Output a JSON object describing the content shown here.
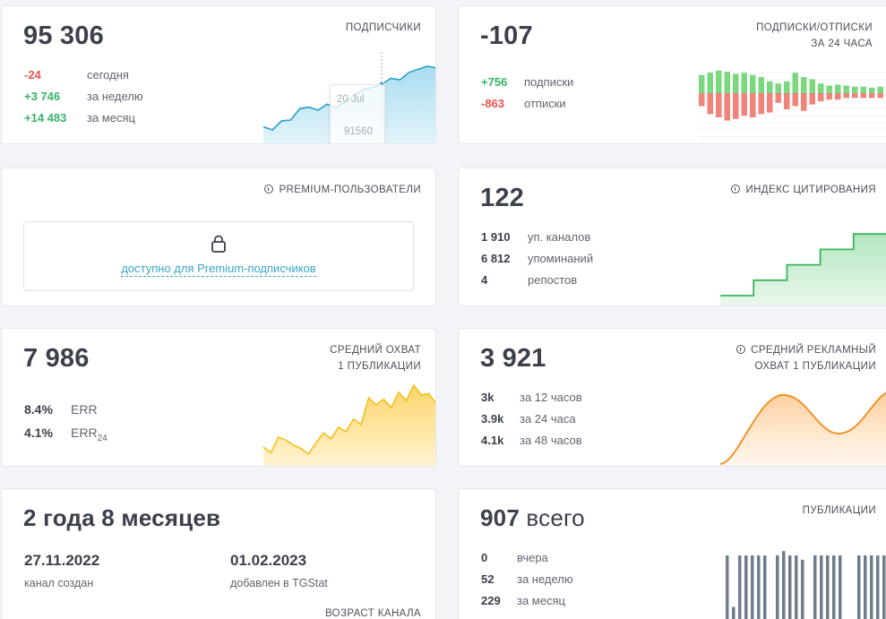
{
  "subscribers": {
    "value": "95 306",
    "title": "ПОДПИСЧИКИ",
    "rows": [
      {
        "num": "-24",
        "label": "сегодня"
      },
      {
        "num": "+3 746",
        "label": "за неделю"
      },
      {
        "num": "+14 483",
        "label": "за месяц"
      }
    ],
    "tooltip": {
      "date": "20 Jul",
      "value": "91560"
    },
    "chart_data": {
      "type": "area",
      "values": [
        91000,
        90960,
        91080,
        91090,
        91240,
        91260,
        91220,
        91300,
        91250,
        91330,
        91420,
        91500,
        91520,
        91560,
        91640,
        91620,
        91720,
        91760,
        91800,
        91780
      ]
    }
  },
  "subs_unsubs": {
    "value": "-107",
    "title_line1": "ПОДПИСКИ/ОТПИСКИ",
    "title_line2": "ЗА 24 ЧАСА",
    "rows": [
      {
        "num": "+756",
        "label": "подписки"
      },
      {
        "num": "-863",
        "label": "отписки"
      }
    ],
    "colors": {
      "up": "#7bd87f",
      "down": "#f0837a"
    },
    "chart_data": {
      "type": "bar",
      "up": [
        34,
        38,
        42,
        40,
        36,
        38,
        34,
        30,
        22,
        18,
        22,
        38,
        30,
        26,
        18,
        14,
        16,
        14,
        12,
        12,
        10,
        12
      ],
      "down": [
        16,
        26,
        30,
        34,
        32,
        28,
        30,
        26,
        24,
        12,
        20,
        16,
        22,
        14,
        10,
        8,
        8,
        6,
        6,
        6,
        6,
        6
      ]
    }
  },
  "premium": {
    "title": "PREMIUM-ПОЛЬЗОВАТЕЛИ",
    "lock_text": "доступно для Premium-подписчиков"
  },
  "citation": {
    "value": "122",
    "title": "ИНДЕКС ЦИТИРОВАНИЯ",
    "rows": [
      {
        "num": "1 910",
        "label": "уп. каналов"
      },
      {
        "num": "6 812",
        "label": "упоминаний"
      },
      {
        "num": "4",
        "label": "репостов"
      }
    ],
    "chart_data": {
      "type": "area",
      "steps": [
        0,
        0,
        1,
        1,
        2,
        2,
        3,
        3,
        4,
        4,
        5
      ]
    }
  },
  "avg_reach": {
    "value": "7 986",
    "title_line1": "СРЕДНИЙ ОХВАТ",
    "title_line2": "1 ПУБЛИКАЦИИ",
    "rows": [
      {
        "num": "8.4%",
        "label": "ERR"
      },
      {
        "num": "4.1%",
        "label": "ERR",
        "sub": "24"
      }
    ],
    "chart_data": {
      "type": "area",
      "values": [
        7200,
        7120,
        7340,
        7300,
        7230,
        7180,
        7100,
        7260,
        7400,
        7320,
        7480,
        7420,
        7600,
        7520,
        7900,
        7800,
        7880,
        7760,
        7980,
        7860,
        8080,
        7940,
        7960,
        7820
      ]
    }
  },
  "ad_reach": {
    "value": "3 921",
    "title_line1": "СРЕДНИЙ РЕКЛАМНЫЙ",
    "title_line2": "ОХВАТ 1 ПУБЛИКАЦИИ",
    "rows": [
      {
        "num": "3k",
        "label": "за 12 часов"
      },
      {
        "num": "3.9k",
        "label": "за 24 часа"
      },
      {
        "num": "4.1k",
        "label": "за 48 часов"
      }
    ]
  },
  "age": {
    "value": "2 года 8 месяцев",
    "created_date": "27.11.2022",
    "created_label": "канал создан",
    "added_date": "01.02.2023",
    "added_label": "добавлен в TGStat",
    "title": "ВОЗРАСТ КАНАЛА"
  },
  "publications": {
    "value": "907",
    "value_sub": "всего",
    "title": "ПУБЛИКАЦИИ",
    "rows": [
      {
        "num": "0",
        "label": "вчера"
      },
      {
        "num": "52",
        "label": "за неделю"
      },
      {
        "num": "229",
        "label": "за месяц"
      }
    ],
    "chart_data": {
      "type": "bar",
      "values": [
        3,
        0.6,
        3,
        3,
        3,
        3,
        3,
        0,
        3,
        3.2,
        3,
        3,
        2.8,
        0,
        3,
        3,
        3,
        3,
        3,
        0,
        0,
        3,
        3,
        3,
        3,
        3
      ]
    }
  }
}
